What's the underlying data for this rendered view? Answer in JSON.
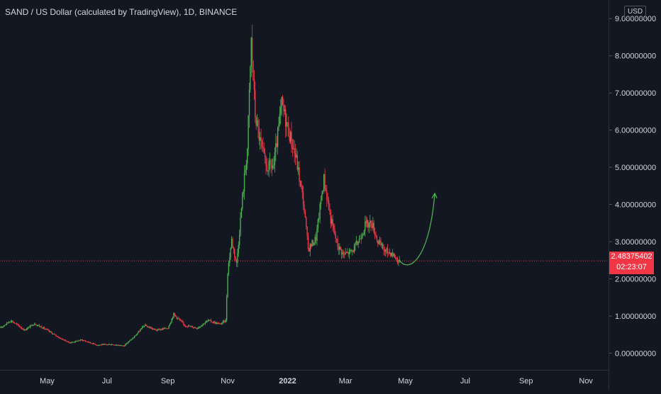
{
  "header": {
    "symbol_title": "SAND / US Dollar (calculated by TradingView), 1D, BINANCE",
    "currency": "USD"
  },
  "last_price": {
    "value": "2.48375402",
    "countdown": "02:23:07"
  },
  "colors": {
    "background": "#131722",
    "up": "#26a69a",
    "down": "#ef5350",
    "up_candle": "#4caf50",
    "down_candle": "#f23645",
    "projection": "#4caf50",
    "price_line": "#f23645"
  },
  "chart_data": {
    "type": "candlestick",
    "title": "SAND / US Dollar (calculated by TradingView), 1D, BINANCE",
    "ylim": [
      -0.45,
      9.5
    ],
    "y_ticks": [
      "0.00000000",
      "1.00000000",
      "2.00000000",
      "3.00000000",
      "4.00000000",
      "5.00000000",
      "6.00000000",
      "7.00000000",
      "8.00000000",
      "9.00000000"
    ],
    "y_tick_values": [
      0,
      1,
      2,
      3,
      4,
      5,
      6,
      7,
      8,
      9
    ],
    "x_ticks": [
      "May",
      "Jul",
      "Sep",
      "Nov",
      "2022",
      "Mar",
      "May",
      "Jul",
      "Sep",
      "Nov"
    ],
    "x_tick_dates": [
      "2021-05-01",
      "2021-07-01",
      "2021-09-01",
      "2021-11-01",
      "2022-01-01",
      "2022-03-01",
      "2022-05-01",
      "2022-07-01",
      "2022-09-01",
      "2022-11-01"
    ],
    "x_range": [
      "2021-03-14",
      "2022-11-24"
    ],
    "price_path": [
      [
        "2021-03-14",
        0.68
      ],
      [
        "2021-03-25",
        0.88
      ],
      [
        "2021-04-08",
        0.62
      ],
      [
        "2021-04-18",
        0.8
      ],
      [
        "2021-05-01",
        0.62
      ],
      [
        "2021-05-13",
        0.42
      ],
      [
        "2021-05-24",
        0.28
      ],
      [
        "2021-06-05",
        0.36
      ],
      [
        "2021-06-21",
        0.22
      ],
      [
        "2021-07-05",
        0.24
      ],
      [
        "2021-07-18",
        0.2
      ],
      [
        "2021-07-28",
        0.42
      ],
      [
        "2021-08-08",
        0.75
      ],
      [
        "2021-08-20",
        0.62
      ],
      [
        "2021-09-01",
        0.68
      ],
      [
        "2021-09-07",
        1.05
      ],
      [
        "2021-09-18",
        0.75
      ],
      [
        "2021-10-01",
        0.68
      ],
      [
        "2021-10-12",
        0.88
      ],
      [
        "2021-10-24",
        0.78
      ],
      [
        "2021-10-30",
        0.88
      ],
      [
        "2021-11-01",
        2.2
      ],
      [
        "2021-11-05",
        3.05
      ],
      [
        "2021-11-10",
        2.4
      ],
      [
        "2021-11-16",
        4.2
      ],
      [
        "2021-11-21",
        5.5
      ],
      [
        "2021-11-25",
        8.4
      ],
      [
        "2021-11-29",
        6.4
      ],
      [
        "2021-12-04",
        5.7
      ],
      [
        "2021-12-10",
        5.0
      ],
      [
        "2021-12-18",
        5.05
      ],
      [
        "2021-12-26",
        6.7
      ],
      [
        "2022-01-02",
        6.0
      ],
      [
        "2022-01-10",
        5.2
      ],
      [
        "2022-01-17",
        4.1
      ],
      [
        "2022-01-22",
        2.8
      ],
      [
        "2022-01-30",
        3.1
      ],
      [
        "2022-02-07",
        4.7
      ],
      [
        "2022-02-14",
        3.6
      ],
      [
        "2022-02-21",
        2.9
      ],
      [
        "2022-02-27",
        2.65
      ],
      [
        "2022-03-08",
        2.75
      ],
      [
        "2022-03-14",
        3.0
      ],
      [
        "2022-03-21",
        3.45
      ],
      [
        "2022-03-28",
        3.5
      ],
      [
        "2022-04-03",
        3.0
      ],
      [
        "2022-04-10",
        2.75
      ],
      [
        "2022-04-17",
        2.7
      ],
      [
        "2022-04-25",
        2.45
      ]
    ],
    "projection_path": [
      [
        "2022-04-25",
        2.5
      ],
      [
        "2022-05-04",
        2.3
      ],
      [
        "2022-05-18",
        2.7
      ],
      [
        "2022-05-31",
        4.3
      ]
    ],
    "last_price": 2.48375402
  }
}
